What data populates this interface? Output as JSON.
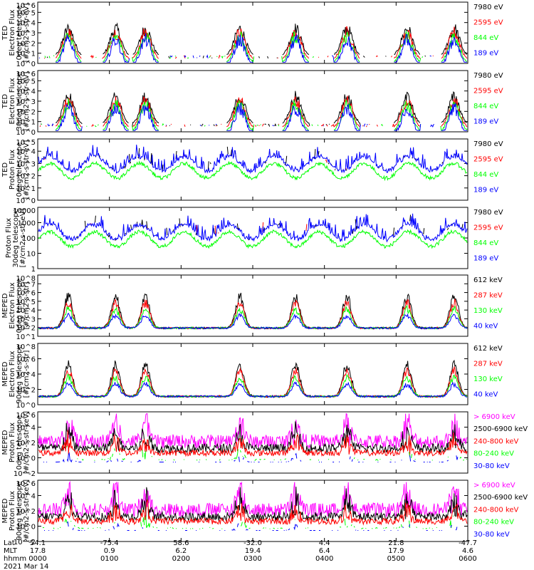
{
  "date_label": "2021 Mar 14",
  "colors": {
    "blue": "#0000ff",
    "red": "#ff0000",
    "green": "#00ff00",
    "black": "#000000",
    "magenta": "#ff00ff"
  },
  "xaxis": {
    "row_labels": [
      "Lat",
      "MLT",
      "hhmm"
    ],
    "ticks": [
      {
        "hhmm": "0000",
        "lat": "54.1",
        "mlt": "17.8"
      },
      {
        "hhmm": "0100",
        "lat": "-75.4",
        "mlt": "0.9"
      },
      {
        "hhmm": "0200",
        "lat": "58.6",
        "mlt": "6.2"
      },
      {
        "hhmm": "0300",
        "lat": "-32.0",
        "mlt": "19.4"
      },
      {
        "hhmm": "0400",
        "lat": "4.4",
        "mlt": "6.4"
      },
      {
        "hhmm": "0500",
        "lat": "21.8",
        "mlt": "17.9"
      },
      {
        "hhmm": "0600",
        "lat": "-47.7",
        "mlt": "4.6"
      }
    ]
  },
  "chart_data": [
    {
      "type": "line",
      "ylabel": [
        "TED",
        "Electron Flux",
        "0deg telescope",
        "[#/cm2-s-str-eV]"
      ],
      "yscale": "log",
      "ylim_exp": [
        0,
        6
      ],
      "ytick_labels": [
        "10^0",
        "10^1",
        "10^2",
        "10^3",
        "10^4",
        "10^5",
        "10^6"
      ],
      "legend": [
        {
          "name": "7980 eV",
          "color": "black"
        },
        {
          "name": "2595 eV",
          "color": "red"
        },
        {
          "name": "844 eV",
          "color": "green"
        },
        {
          "name": "189 eV",
          "color": "blue"
        }
      ]
    },
    {
      "type": "line",
      "ylabel": [
        "TED",
        "Electron Flux",
        "30deg telescope",
        "[#/cm2-s-str-eV]"
      ],
      "yscale": "log",
      "ylim_exp": [
        0,
        6
      ],
      "ytick_labels": [
        "10^0",
        "10^1",
        "10^2",
        "10^3",
        "10^4",
        "10^5",
        "10^6"
      ],
      "legend": [
        {
          "name": "7980 eV",
          "color": "black"
        },
        {
          "name": "2595 eV",
          "color": "red"
        },
        {
          "name": "844 eV",
          "color": "green"
        },
        {
          "name": "189 eV",
          "color": "blue"
        }
      ]
    },
    {
      "type": "line",
      "ylabel": [
        "TED",
        "Proton Flux",
        "0deg telescope",
        "[#/cm2-s-str-eV]"
      ],
      "yscale": "log",
      "ylim_exp": [
        0,
        5
      ],
      "ytick_labels": [
        "10^0",
        "10^1",
        "10^2",
        "10^3",
        "10^4",
        "10^5"
      ],
      "legend": [
        {
          "name": "7980 eV",
          "color": "black"
        },
        {
          "name": "2595 eV",
          "color": "red"
        },
        {
          "name": "844 eV",
          "color": "green"
        },
        {
          "name": "189 eV",
          "color": "blue"
        }
      ]
    },
    {
      "type": "line",
      "ylabel": [
        "Proton Flux",
        "30deg telescope",
        "[#/cm2-s-str-eV]"
      ],
      "yscale": "log",
      "ylim_exp": [
        0,
        4
      ],
      "ytick_labels": [
        "1",
        "10",
        "100",
        "1000",
        "10000"
      ],
      "legend": [
        {
          "name": "7980 eV",
          "color": "black"
        },
        {
          "name": "2595 eV",
          "color": "red"
        },
        {
          "name": "844 eV",
          "color": "green"
        },
        {
          "name": "189 eV",
          "color": "blue"
        }
      ]
    },
    {
      "type": "line",
      "ylabel": [
        "MEPED",
        "Electron Flux",
        "0deg telescope",
        "[#/cm2-s-str]"
      ],
      "yscale": "log",
      "ylim_exp": [
        1,
        8
      ],
      "ytick_labels": [
        "10^1",
        "10^2",
        "10^3",
        "10^4",
        "10^5",
        "10^6",
        "10^7",
        "10^8"
      ],
      "legend": [
        {
          "name": "612 keV",
          "color": "black"
        },
        {
          "name": "287 keV",
          "color": "red"
        },
        {
          "name": "130 keV",
          "color": "green"
        },
        {
          "name": "40 keV",
          "color": "blue"
        }
      ]
    },
    {
      "type": "line",
      "ylabel": [
        "MEPED",
        "Electron Flux",
        "90deg telescope",
        "[#/cm2-s-str]"
      ],
      "yscale": "log",
      "ylim_exp": [
        0,
        8
      ],
      "ytick_labels": [
        "10^0",
        "10^2",
        "10^4",
        "10^6",
        "10^8"
      ],
      "legend": [
        {
          "name": "612 keV",
          "color": "black"
        },
        {
          "name": "287 keV",
          "color": "red"
        },
        {
          "name": "130 keV",
          "color": "green"
        },
        {
          "name": "40 keV",
          "color": "blue"
        }
      ]
    },
    {
      "type": "line",
      "ylabel": [
        "MEPED",
        "Proton Flux",
        "0deg telescope",
        "[#/cm2-s-str-keV]"
      ],
      "yscale": "log",
      "ylim_exp": [
        -2,
        6
      ],
      "ytick_labels": [
        "10^-2",
        "10^0",
        "10^2",
        "10^4",
        "10^6"
      ],
      "legend": [
        {
          "name": "> 6900 keV",
          "color": "magenta"
        },
        {
          "name": "2500-6900 keV",
          "color": "black"
        },
        {
          "name": "240-800 keV",
          "color": "red"
        },
        {
          "name": "80-240 keV",
          "color": "green"
        },
        {
          "name": "30-80 keV",
          "color": "blue"
        }
      ]
    },
    {
      "type": "line",
      "ylabel": [
        "MEPED",
        "Proton Flux",
        "90deg telescope",
        "[#/cm2-s-str-keV]"
      ],
      "yscale": "log",
      "ylim_exp": [
        -2,
        6
      ],
      "ytick_labels": [
        "10^-2",
        "10^0",
        "10^2",
        "10^4",
        "10^6"
      ],
      "legend": [
        {
          "name": "> 6900 keV",
          "color": "magenta"
        },
        {
          "name": "2500-6900 keV",
          "color": "black"
        },
        {
          "name": "240-800 keV",
          "color": "red"
        },
        {
          "name": "80-240 keV",
          "color": "green"
        },
        {
          "name": "30-80 keV",
          "color": "blue"
        }
      ]
    }
  ]
}
